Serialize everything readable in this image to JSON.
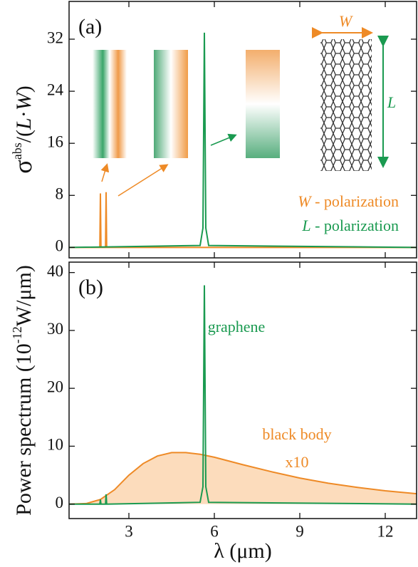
{
  "chart_data": [
    {
      "type": "line",
      "label": "(a)",
      "ylabel_parts": [
        "σ",
        "abs",
        "/(",
        "L",
        "·",
        "W",
        ")"
      ],
      "xlim": [
        0.9,
        13.1
      ],
      "xticks": [
        3,
        6,
        9,
        12
      ],
      "ylim": [
        -1.6,
        37.8
      ],
      "yticks": [
        0,
        8,
        16,
        24,
        32
      ],
      "inset_labels": [
        "W",
        "L"
      ],
      "series": [
        {
          "name_parts": [
            "W",
            " - polarization"
          ],
          "color": "#ee8a26",
          "x": [
            0.9,
            1.98,
            2.0,
            2.02,
            2.18,
            2.2,
            2.22,
            13.1
          ],
          "values": [
            0,
            0,
            8.3,
            0,
            0,
            8.5,
            0,
            0
          ]
        },
        {
          "name_parts": [
            "L",
            " - polarization"
          ],
          "color": "#1a9a50",
          "x": [
            0.9,
            5.5,
            5.6,
            5.65,
            5.7,
            5.8,
            13.1
          ],
          "values": [
            0,
            0.3,
            3,
            33,
            3,
            0.3,
            0
          ]
        }
      ]
    },
    {
      "type": "line",
      "label": "(b)",
      "ylabel_parts": [
        "Power spectrum (10",
        "-12",
        "W/μm)"
      ],
      "xlabel": "λ (μm)",
      "xlim": [
        0.9,
        13.1
      ],
      "xticks": [
        3,
        6,
        9,
        12
      ],
      "ylim": [
        -2.5,
        41.8
      ],
      "yticks": [
        0,
        10,
        20,
        30,
        40
      ],
      "annotations": [
        "graphene",
        "black body",
        "x10"
      ],
      "series": [
        {
          "color": "#ee8a26",
          "fill": "#fcdcbc",
          "x": [
            0.9,
            1.5,
            2,
            2.5,
            3,
            3.5,
            4,
            4.5,
            5,
            5.5,
            6,
            7,
            8,
            9,
            10,
            11,
            12,
            13.1
          ],
          "values": [
            0,
            0.1,
            0.8,
            2.5,
            5,
            7,
            8.3,
            8.9,
            8.9,
            8.6,
            8.1,
            6.8,
            5.6,
            4.5,
            3.6,
            2.9,
            2.3,
            1.8
          ]
        },
        {
          "color": "#1a9a50",
          "x": [
            0.9,
            1.98,
            2.0,
            2.02,
            2.18,
            2.2,
            2.22,
            5.5,
            5.6,
            5.65,
            5.7,
            5.8,
            13.1
          ],
          "values": [
            0,
            0,
            0.8,
            0,
            0,
            1.7,
            0,
            0.3,
            3,
            37.8,
            3,
            0.3,
            0
          ]
        }
      ]
    }
  ]
}
